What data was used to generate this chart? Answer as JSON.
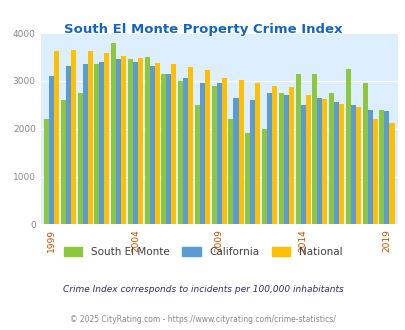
{
  "title": "South El Monte Property Crime Index",
  "years": [
    1999,
    2000,
    2001,
    2002,
    2003,
    2004,
    2005,
    2006,
    2007,
    2008,
    2009,
    2010,
    2011,
    2012,
    2013,
    2014,
    2015,
    2016,
    2017,
    2018,
    2019
  ],
  "south_el_monte": [
    2200,
    2600,
    2750,
    3350,
    3800,
    3450,
    3500,
    3150,
    3000,
    2500,
    2900,
    2200,
    1900,
    2000,
    2750,
    3150,
    3150,
    2750,
    3250,
    2950,
    2400
  ],
  "california": [
    3100,
    3300,
    3350,
    3400,
    3450,
    3400,
    3300,
    3150,
    3050,
    2950,
    2950,
    2650,
    2600,
    2750,
    2700,
    2500,
    2650,
    2550,
    2500,
    2400,
    2380
  ],
  "national": [
    3620,
    3650,
    3620,
    3580,
    3520,
    3480,
    3380,
    3350,
    3280,
    3230,
    3050,
    3020,
    2950,
    2900,
    2870,
    2700,
    2620,
    2510,
    2460,
    2210,
    2110
  ],
  "bar_colors": {
    "south_el_monte": "#8dc63f",
    "california": "#5b9bd5",
    "national": "#ffc000"
  },
  "ylim": [
    0,
    4000
  ],
  "yticks": [
    0,
    1000,
    2000,
    3000,
    4000
  ],
  "plot_bg_color": "#ddeeff",
  "title_color": "#1565c0",
  "legend_labels": [
    "South El Monte",
    "California",
    "National"
  ],
  "footnote1": "Crime Index corresponds to incidents per 100,000 inhabitants",
  "footnote2": "© 2025 CityRating.com - https://www.cityrating.com/crime-statistics/",
  "xlabel_ticks": [
    1999,
    2004,
    2009,
    2014,
    2019
  ],
  "title_fontsize": 9.5,
  "tick_fontsize": 6.5,
  "legend_fontsize": 7.5,
  "footnote1_fontsize": 6.5,
  "footnote2_fontsize": 5.5
}
